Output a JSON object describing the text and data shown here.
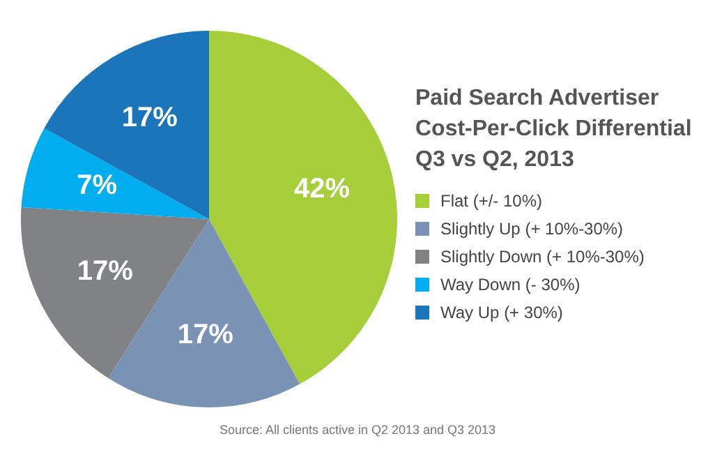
{
  "chart_data": {
    "type": "pie",
    "title": "Paid Search Advertiser Cost-Per-Click Differential Q3 vs Q2, 2013",
    "categories": [
      "Flat (+/- 10%)",
      "Slightly Up (+ 10%-30%)",
      "Slightly Down (+ 10%-30%)",
      "Way Down (- 30%)",
      "Way Up (+ 30%)"
    ],
    "values": [
      42,
      17,
      17,
      7,
      17
    ],
    "value_labels": [
      "42%",
      "17%",
      "17%",
      "7%",
      "17%"
    ],
    "colors": [
      "#a6ce39",
      "#7a92b4",
      "#808285",
      "#00aeef",
      "#1a75bb"
    ],
    "legend": "right",
    "annotations": [
      "Source: All clients active in Q2 2013 and Q3 2013"
    ]
  }
}
